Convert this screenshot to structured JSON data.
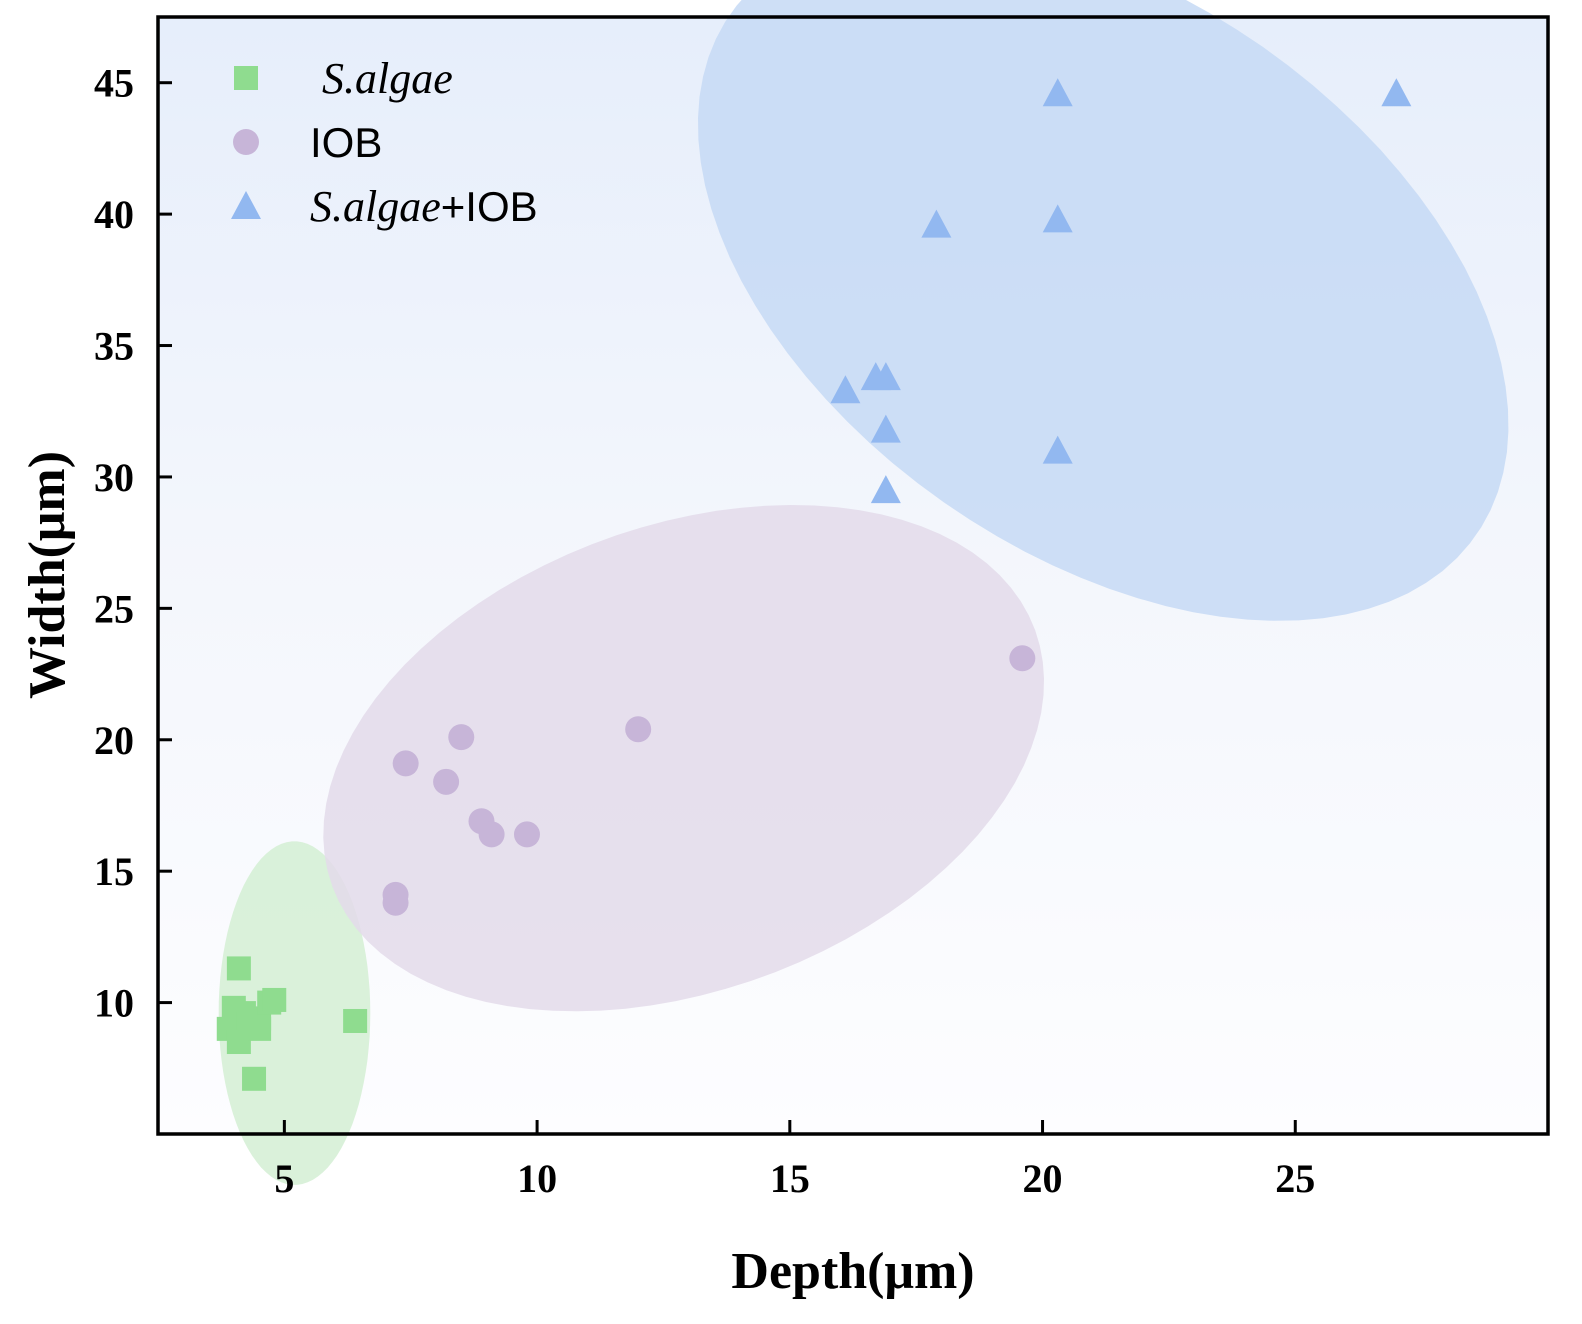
{
  "chart_data": {
    "type": "scatter",
    "xlabel": "Depth(μm)",
    "ylabel": "Width(μm)",
    "xlim": [
      2.5,
      30
    ],
    "ylim": [
      5,
      47.5
    ],
    "xticks": [
      5,
      10,
      15,
      20,
      25
    ],
    "yticks": [
      10,
      15,
      20,
      25,
      30,
      35,
      40,
      45
    ],
    "grid": false,
    "legend_position": "top-left",
    "series": [
      {
        "name": "S.algae",
        "name_italic": "S.algae",
        "name_suffix": "",
        "marker": "square",
        "color": "#8fdc8f",
        "ellipse": {
          "cx": 5.2,
          "cy": 9.6,
          "rx": 1.5,
          "ry": 3.4,
          "angle_deg": 0,
          "color": "#d3efd3"
        },
        "points": [
          {
            "x": 4.1,
            "y": 11.3
          },
          {
            "x": 4.0,
            "y": 9.8
          },
          {
            "x": 4.2,
            "y": 9.6
          },
          {
            "x": 3.9,
            "y": 9.0
          },
          {
            "x": 4.3,
            "y": 9.2
          },
          {
            "x": 4.1,
            "y": 8.5
          },
          {
            "x": 4.5,
            "y": 9.4
          },
          {
            "x": 4.7,
            "y": 10.0
          },
          {
            "x": 4.5,
            "y": 9.0
          },
          {
            "x": 4.8,
            "y": 10.1
          },
          {
            "x": 6.4,
            "y": 9.3
          },
          {
            "x": 4.4,
            "y": 7.1
          }
        ]
      },
      {
        "name": "IOB",
        "name_italic": "",
        "name_suffix": "IOB",
        "marker": "circle",
        "color": "#c7b5d8",
        "ellipse": {
          "cx": 12.9,
          "cy": 19.3,
          "rx": 7.4,
          "ry": 4.6,
          "angle_deg": 20,
          "color": "#e3dbea"
        },
        "points": [
          {
            "x": 7.4,
            "y": 19.1
          },
          {
            "x": 8.5,
            "y": 20.1
          },
          {
            "x": 8.2,
            "y": 18.4
          },
          {
            "x": 8.9,
            "y": 16.9
          },
          {
            "x": 9.1,
            "y": 16.4
          },
          {
            "x": 9.8,
            "y": 16.4
          },
          {
            "x": 12.0,
            "y": 20.4
          },
          {
            "x": 7.2,
            "y": 14.1
          },
          {
            "x": 7.2,
            "y": 13.8
          },
          {
            "x": 19.6,
            "y": 23.1
          }
        ]
      },
      {
        "name": "S.algae+IOB",
        "name_italic": "S.algae",
        "name_suffix": "+IOB",
        "marker": "triangle",
        "color": "#92b8f0",
        "ellipse": {
          "cx": 21.2,
          "cy": 37.7,
          "rx": 5.5,
          "ry": 9.0,
          "angle_deg": 55,
          "color": "#c6d9f4"
        },
        "points": [
          {
            "x": 20.3,
            "y": 44.6
          },
          {
            "x": 27.0,
            "y": 44.6
          },
          {
            "x": 17.9,
            "y": 39.6
          },
          {
            "x": 20.3,
            "y": 39.8
          },
          {
            "x": 16.1,
            "y": 33.3
          },
          {
            "x": 16.7,
            "y": 33.8
          },
          {
            "x": 16.9,
            "y": 33.8
          },
          {
            "x": 16.9,
            "y": 31.8
          },
          {
            "x": 20.3,
            "y": 31.0
          },
          {
            "x": 16.9,
            "y": 29.5
          }
        ]
      }
    ]
  }
}
